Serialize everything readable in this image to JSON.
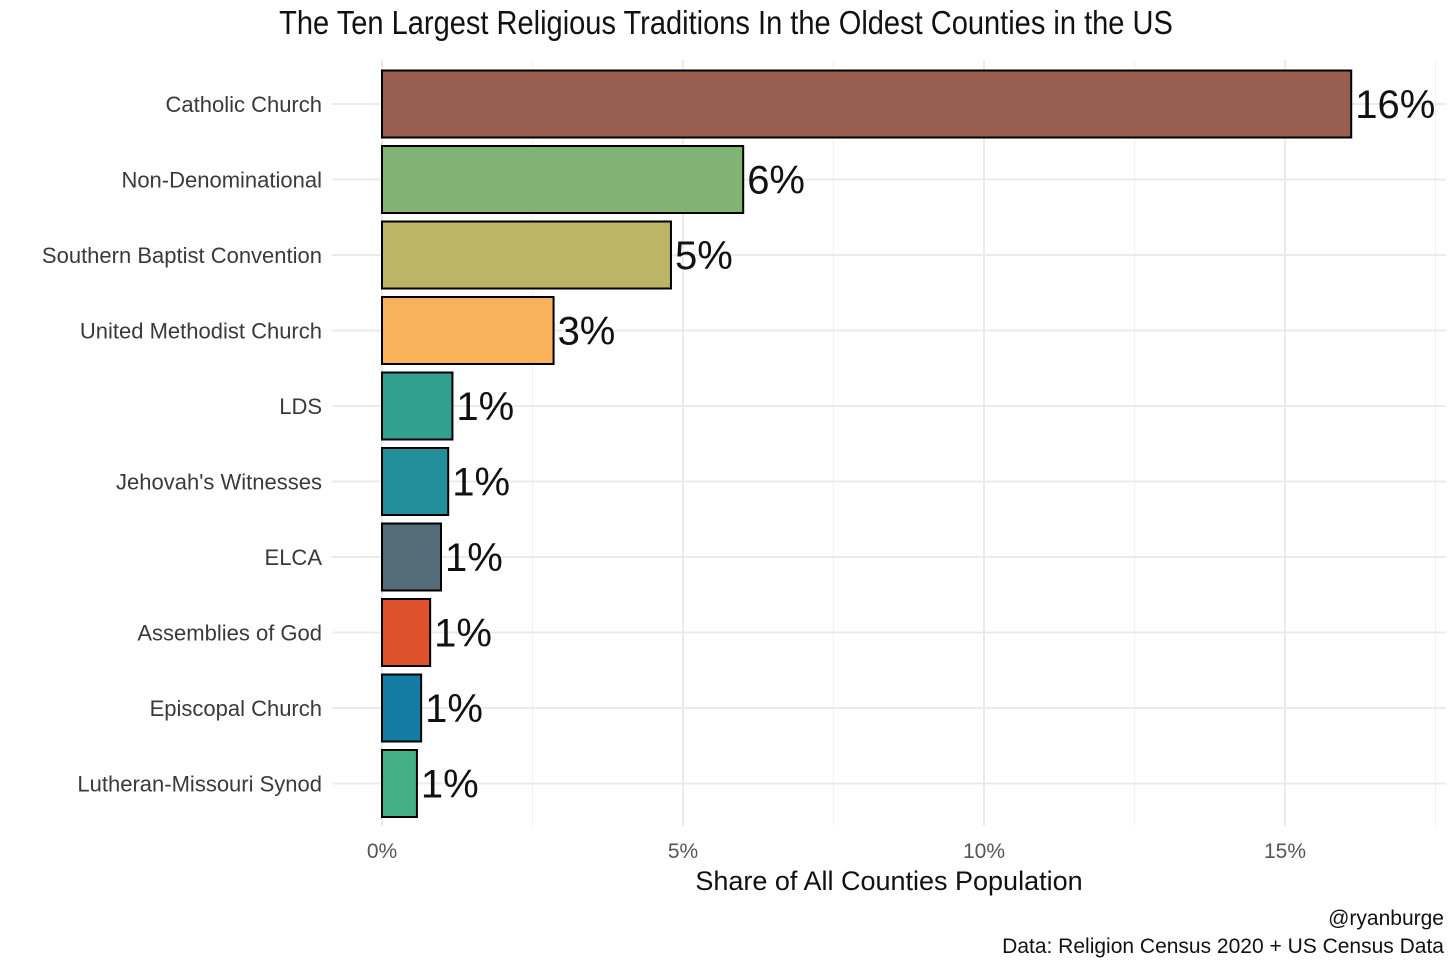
{
  "chart_data": {
    "type": "bar",
    "orientation": "horizontal",
    "title": "The Ten Largest Religious Traditions In the Oldest Counties in the US",
    "xlabel": "Share of All Counties Population",
    "ylabel": "",
    "xlim": [
      0,
      17.5
    ],
    "x_ticks": [
      0,
      5,
      10,
      15
    ],
    "x_tick_labels": [
      "0%",
      "5%",
      "10%",
      "15%"
    ],
    "categories": [
      "Catholic Church",
      "Non-Denominational",
      "Southern Baptist Convention",
      "United Methodist Church",
      "LDS",
      "Jehovah's Witnesses",
      "ELCA",
      "Assemblies of God",
      "Episcopal Church",
      "Lutheran-Missouri Synod"
    ],
    "values": [
      16.1,
      6.0,
      4.8,
      2.85,
      1.17,
      1.1,
      0.98,
      0.8,
      0.65,
      0.58
    ],
    "value_labels": [
      "16%",
      "6%",
      "5%",
      "3%",
      "1%",
      "1%",
      "1%",
      "1%",
      "1%",
      "1%"
    ],
    "colors": [
      "#985F51",
      "#81B375",
      "#BCB467",
      "#FAB25A",
      "#33A08F",
      "#238F9A",
      "#546B78",
      "#DD522A",
      "#127CA5",
      "#43B185"
    ],
    "bar_outline_color": "#000000",
    "grid": true,
    "captions": [
      "@ryanburge",
      "Data: Religion Census 2020 + US Census Data"
    ]
  }
}
